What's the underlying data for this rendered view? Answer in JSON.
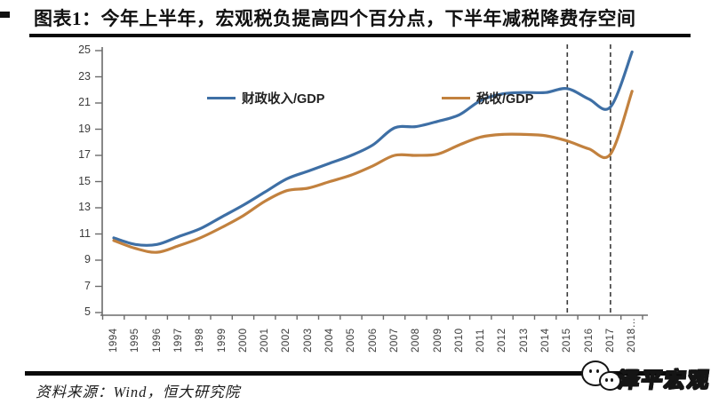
{
  "chart_data": {
    "type": "line",
    "title": "图表1：今年上半年，宏观税负提高四个百分点，下半年减税降费存空间",
    "categories": [
      1994,
      1995,
      1996,
      1997,
      1998,
      1999,
      2000,
      2001,
      2002,
      2003,
      2004,
      2005,
      2006,
      2007,
      2008,
      2009,
      2010,
      2011,
      2012,
      2013,
      2014,
      2015,
      2016,
      2017,
      2018
    ],
    "xtick_labels": [
      "1994",
      "1995",
      "1996",
      "1997",
      "1998",
      "1999",
      "2000",
      "2001",
      "2002",
      "2003",
      "2004",
      "2005",
      "2006",
      "2007",
      "2008",
      "2009",
      "2010",
      "2011",
      "2012",
      "2013",
      "2014",
      "2015",
      "2016",
      "2017",
      "2018…"
    ],
    "series": [
      {
        "name": "财政收入/GDP",
        "color": "#3E6FA5",
        "values": [
          10.7,
          10.2,
          10.2,
          10.8,
          11.4,
          12.3,
          13.2,
          14.2,
          15.2,
          15.8,
          16.4,
          17.0,
          17.8,
          19.1,
          19.2,
          19.6,
          20.1,
          21.2,
          21.7,
          21.8,
          21.8,
          22.1,
          21.3,
          20.7,
          24.9
        ]
      },
      {
        "name": "税收/GDP",
        "color": "#C2813E",
        "values": [
          10.5,
          9.9,
          9.6,
          10.1,
          10.7,
          11.5,
          12.4,
          13.5,
          14.3,
          14.5,
          15.0,
          15.5,
          16.2,
          17.0,
          17.0,
          17.1,
          17.8,
          18.4,
          18.6,
          18.6,
          18.5,
          18.1,
          17.5,
          17.1,
          21.9
        ]
      }
    ],
    "ylim": [
      5,
      25
    ],
    "yticks": [
      25,
      23,
      21,
      19,
      17,
      15,
      13,
      11,
      9,
      7,
      5
    ],
    "grid": false,
    "legend_position": "top",
    "dashed_vlines": [
      2015,
      2017
    ],
    "axis_color": "#6b6b6b",
    "dashed_line_color": "#3a3a3a"
  },
  "source": {
    "text": "资料来源：Wind，恒大研究院"
  },
  "logo": {
    "text": "泽平宏观"
  }
}
